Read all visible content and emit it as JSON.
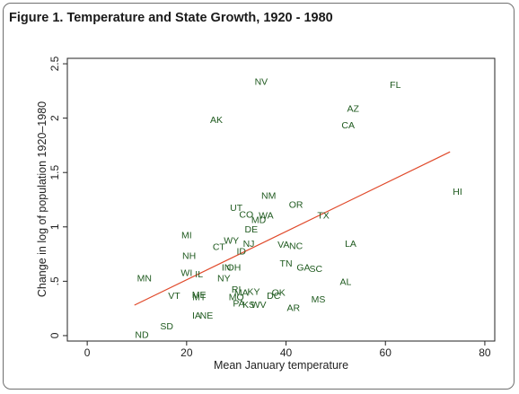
{
  "figure": {
    "title": "Figure 1. Temperature and State Growth, 1920 - 1980"
  },
  "chart_data": {
    "type": "scatter",
    "title": "Figure 1. Temperature and State Growth, 1920 - 1980",
    "xlabel": "Mean January temperature",
    "ylabel": "Change in log of population 1920–1980",
    "xlim": [
      -4,
      82
    ],
    "ylim": [
      -0.05,
      2.55
    ],
    "xticks": [
      0,
      20,
      40,
      60,
      80
    ],
    "yticks": [
      0,
      0.5,
      1,
      1.5,
      2,
      2.5
    ],
    "ytick_labels": [
      "0",
      ".5",
      "1",
      "1.5",
      "2",
      "2.5"
    ],
    "grid": false,
    "point_color": "#1f5a1f",
    "fit_color": "#e0492a",
    "fit_line": {
      "x": [
        9.5,
        73
      ],
      "y": [
        0.28,
        1.69
      ]
    },
    "points": [
      {
        "label": "NV",
        "x": 35,
        "y": 2.34
      },
      {
        "label": "FL",
        "x": 62,
        "y": 2.31
      },
      {
        "label": "AZ",
        "x": 53.5,
        "y": 2.09
      },
      {
        "label": "AK",
        "x": 26,
        "y": 1.99
      },
      {
        "label": "CA",
        "x": 52.5,
        "y": 1.94
      },
      {
        "label": "HI",
        "x": 74.5,
        "y": 1.33
      },
      {
        "label": "NM",
        "x": 36.5,
        "y": 1.29
      },
      {
        "label": "OR",
        "x": 42,
        "y": 1.21
      },
      {
        "label": "UT",
        "x": 30,
        "y": 1.18
      },
      {
        "label": "CO",
        "x": 32,
        "y": 1.12
      },
      {
        "label": "WA",
        "x": 36,
        "y": 1.11
      },
      {
        "label": "TX",
        "x": 47.5,
        "y": 1.11
      },
      {
        "label": "MD",
        "x": 34.5,
        "y": 1.07
      },
      {
        "label": "DE",
        "x": 33,
        "y": 0.98
      },
      {
        "label": "MI",
        "x": 20,
        "y": 0.93
      },
      {
        "label": "WY",
        "x": 29,
        "y": 0.88
      },
      {
        "label": "LA",
        "x": 53,
        "y": 0.85
      },
      {
        "label": "NJ",
        "x": 32.5,
        "y": 0.85
      },
      {
        "label": "VA",
        "x": 39.5,
        "y": 0.84
      },
      {
        "label": "NC",
        "x": 42,
        "y": 0.83
      },
      {
        "label": "CT",
        "x": 26.5,
        "y": 0.82
      },
      {
        "label": "ID",
        "x": 31,
        "y": 0.78
      },
      {
        "label": "NH",
        "x": 20.5,
        "y": 0.74
      },
      {
        "label": "TN",
        "x": 40,
        "y": 0.67
      },
      {
        "label": "IN",
        "x": 28,
        "y": 0.63
      },
      {
        "label": "OH",
        "x": 29.5,
        "y": 0.63
      },
      {
        "label": "GA",
        "x": 43.5,
        "y": 0.63
      },
      {
        "label": "SC",
        "x": 46,
        "y": 0.62
      },
      {
        "label": "WI",
        "x": 20,
        "y": 0.58
      },
      {
        "label": "IL",
        "x": 22.5,
        "y": 0.57
      },
      {
        "label": "MN",
        "x": 11.5,
        "y": 0.53
      },
      {
        "label": "NY",
        "x": 27.5,
        "y": 0.53
      },
      {
        "label": "AL",
        "x": 52,
        "y": 0.5
      },
      {
        "label": "RI",
        "x": 30,
        "y": 0.43
      },
      {
        "label": "MA",
        "x": 31,
        "y": 0.4
      },
      {
        "label": "KY",
        "x": 33.5,
        "y": 0.41
      },
      {
        "label": "OK",
        "x": 38.5,
        "y": 0.4
      },
      {
        "label": "VT",
        "x": 17.5,
        "y": 0.37
      },
      {
        "label": "ME",
        "x": 22.5,
        "y": 0.38
      },
      {
        "label": "MT",
        "x": 22.5,
        "y": 0.36
      },
      {
        "label": "MO",
        "x": 30,
        "y": 0.36
      },
      {
        "label": "DC",
        "x": 37.5,
        "y": 0.37
      },
      {
        "label": "MS",
        "x": 46.5,
        "y": 0.34
      },
      {
        "label": "PA",
        "x": 30.5,
        "y": 0.3
      },
      {
        "label": "KS",
        "x": 32.5,
        "y": 0.29
      },
      {
        "label": "WV",
        "x": 34.5,
        "y": 0.29
      },
      {
        "label": "AR",
        "x": 41.5,
        "y": 0.26
      },
      {
        "label": "IA",
        "x": 22,
        "y": 0.19
      },
      {
        "label": "NE",
        "x": 24,
        "y": 0.19
      },
      {
        "label": "SD",
        "x": 16,
        "y": 0.09
      },
      {
        "label": "ND",
        "x": 11,
        "y": 0.01
      }
    ]
  }
}
